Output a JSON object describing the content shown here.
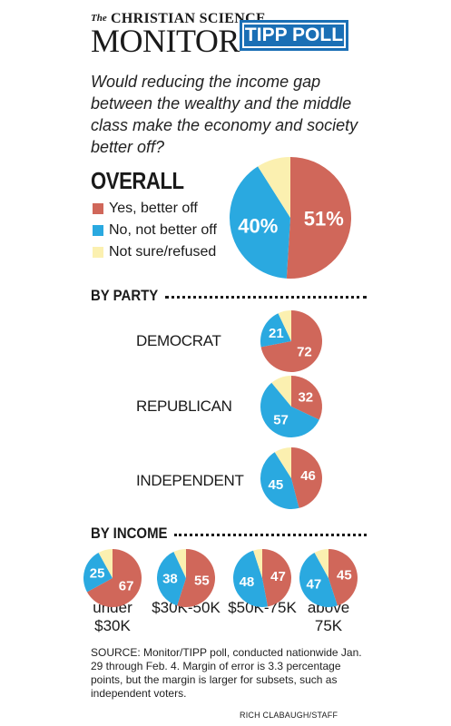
{
  "colors": {
    "yes": "#d0675a",
    "no": "#2aa9e0",
    "unsure": "#fbf0b0",
    "brand": "#1a6fb5"
  },
  "masthead": {
    "the": "The",
    "christian_science": "CHRISTIAN SCIENCE",
    "monitor": "MONITOR",
    "poll": "TIPP POLL"
  },
  "question": "Would reducing the income gap between the wealthy and the middle class make the economy and society better off?",
  "overall": {
    "title": "OVERALL",
    "legend": [
      {
        "key": "yes",
        "label": "Yes, better off"
      },
      {
        "key": "no",
        "label": "No, not better off"
      },
      {
        "key": "unsure",
        "label": "Not sure/refused"
      }
    ]
  },
  "sections": {
    "party": "BY PARTY",
    "income": "BY INCOME"
  },
  "chart_data": {
    "type": "pie",
    "series_keys": [
      "yes",
      "no",
      "unsure"
    ],
    "overall": {
      "yes": 51,
      "no": 40,
      "unsure": 9,
      "labels": [
        "51%",
        "40%"
      ]
    },
    "party": [
      {
        "label": "DEMOCRAT",
        "yes": 72,
        "no": 21,
        "unsure": 7
      },
      {
        "label": "REPUBLICAN",
        "yes": 32,
        "no": 57,
        "unsure": 11
      },
      {
        "label": "INDEPENDENT",
        "yes": 46,
        "no": 45,
        "unsure": 9
      }
    ],
    "income": [
      {
        "label": "under $30K",
        "line1": "under",
        "line2": "$30K",
        "yes": 67,
        "no": 25,
        "unsure": 8
      },
      {
        "label": "$30K-50K",
        "line1": "$30K-50K",
        "line2": "",
        "yes": 55,
        "no": 38,
        "unsure": 7
      },
      {
        "label": "$50K-75K",
        "line1": "$50K-75K",
        "line2": "",
        "yes": 47,
        "no": 48,
        "unsure": 5
      },
      {
        "label": "above 75K",
        "line1": "above",
        "line2": "75K",
        "yes": 45,
        "no": 47,
        "unsure": 8
      }
    ]
  },
  "source": "SOURCE: Monitor/TIPP poll, conducted nationwide Jan. 29 through Feb. 4. Margin of error is 3.3 percentage points, but the margin is larger for subsets, such as independent voters.",
  "credit": "RICH CLABAUGH/STAFF"
}
